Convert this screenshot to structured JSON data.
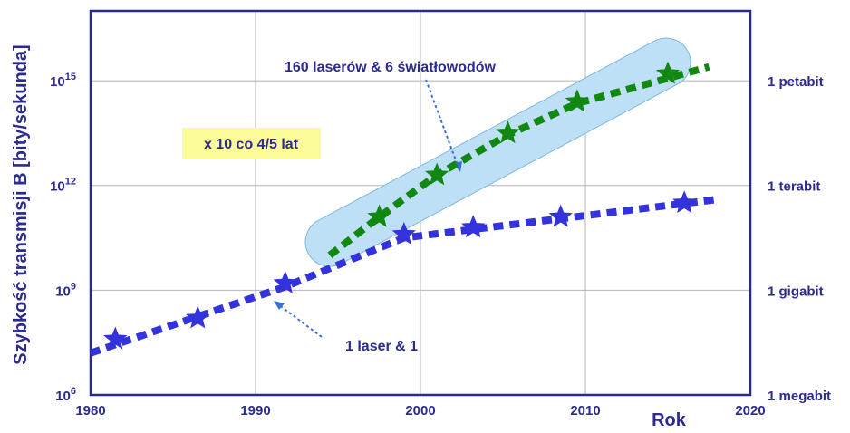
{
  "chart_data": {
    "type": "line",
    "ylabel": "Szybkość transmisji B [bity/sekunda]",
    "xlabel": "Rok",
    "xlim": [
      1980,
      2020
    ],
    "ylim_log10": [
      6,
      17
    ],
    "y_scale": "log",
    "grid": true,
    "x_ticks": [
      "1980",
      "1990",
      "2000",
      "2010",
      "2020"
    ],
    "y_ticks_left": [
      {
        "base": "10",
        "exp": "6",
        "value": 1000000.0
      },
      {
        "base": "10",
        "exp": "9",
        "value": 1000000000.0
      },
      {
        "base": "10",
        "exp": "12",
        "value": 1000000000000.0
      },
      {
        "base": "10",
        "exp": "15",
        "value": 1000000000000000.0
      }
    ],
    "y_ticks_right": [
      {
        "label": "1 megabit",
        "value": 1000000.0
      },
      {
        "label": "1 gigabit",
        "value": 1000000000.0
      },
      {
        "label": "1 terabit",
        "value": 1000000000000.0
      },
      {
        "label": "1 petabit",
        "value": 1000000000000000.0
      }
    ],
    "series": [
      {
        "color": "#3333dd",
        "line": {
          "x": [
            1980,
            2018
          ],
          "log10y": [
            7.2,
            11.6
          ]
        },
        "stars": [
          {
            "x": 1981.5,
            "log10y": 7.6
          },
          {
            "x": 1986.5,
            "log10y": 8.2
          },
          {
            "x": 1991.8,
            "log10y": 9.2
          },
          {
            "x": 1999.0,
            "log10y": 10.6
          },
          {
            "x": 2003.2,
            "log10y": 10.8
          },
          {
            "x": 2008.5,
            "log10y": 11.1
          },
          {
            "x": 2016.0,
            "log10y": 11.5
          }
        ]
      },
      {
        "color": "#118811",
        "line": {
          "x": [
            1994.5,
            2017.5
          ],
          "log10y": [
            10.0,
            15.4
          ]
        },
        "stars": [
          {
            "x": 1997.5,
            "log10y": 11.1
          },
          {
            "x": 2001.0,
            "log10y": 12.3
          },
          {
            "x": 2005.3,
            "log10y": 13.5
          },
          {
            "x": 2009.5,
            "log10y": 14.4
          },
          {
            "x": 2015.0,
            "log10y": 15.2
          }
        ]
      }
    ],
    "annotations": {
      "rate_box": "x 10 co 4/5 lat",
      "green_label": "160 laserów & 6 światłowodów",
      "blue_label": "1 laser & 1"
    }
  },
  "colors": {
    "axis": "#2b2b8f",
    "grid": "#b5b5b5",
    "blue_series": "#3333dd",
    "green_series": "#118811",
    "highlight_fill": "#bde0f7",
    "highlight_stroke": "#7fb8de",
    "rate_box_fill": "#fbfb9a",
    "arrow": "#3a6fd9"
  }
}
